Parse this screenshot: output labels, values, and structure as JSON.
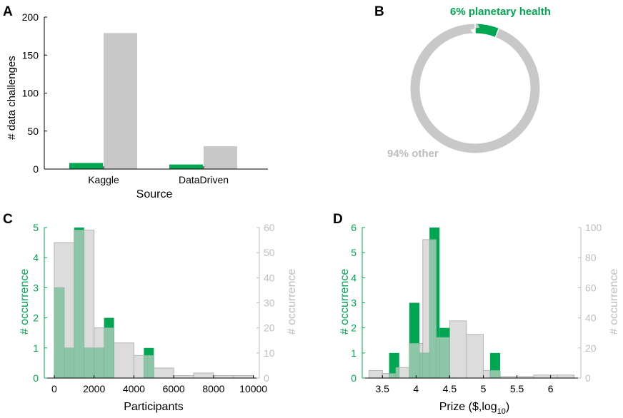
{
  "colors": {
    "green": "#00a651",
    "gray_fill": "#c8c8c8",
    "gray_hist": "#dcdcdc",
    "gray_edge": "#b4b4b4",
    "overlap": "#8dc5a7",
    "overlap_edge": "#7fb89a",
    "axis": "#000000",
    "gray_text": "#bdbdbd"
  },
  "chart_data": [
    {
      "panel": "A",
      "type": "bar",
      "xlabel": "Source",
      "ylabel": "# data challenges",
      "ylim": [
        0,
        200
      ],
      "yticks": [
        0,
        50,
        100,
        150,
        200
      ],
      "categories": [
        "Kaggle",
        "DataDriven"
      ],
      "series": [
        {
          "name": "planetary health",
          "color": "green",
          "values": [
            8,
            6
          ]
        },
        {
          "name": "other",
          "color": "gray",
          "values": [
            179,
            30
          ]
        }
      ]
    },
    {
      "panel": "B",
      "type": "pie",
      "style": "donut",
      "slices": [
        {
          "label": "6% planetary health",
          "value": 6,
          "color": "green"
        },
        {
          "label": "94% other",
          "value": 94,
          "color": "gray"
        }
      ]
    },
    {
      "panel": "C",
      "type": "bar",
      "style": "dual-axis histogram",
      "xlabel": "Participants",
      "ylabel_left": "# occurrence",
      "ylabel_right": "# occurrence",
      "xlim": [
        -500,
        10300
      ],
      "xticks": [
        0,
        2000,
        4000,
        6000,
        8000,
        10000
      ],
      "ylim_left": [
        0,
        5
      ],
      "yticks_left": [
        0,
        1,
        2,
        3,
        4,
        5
      ],
      "ylim_right": [
        0,
        60
      ],
      "yticks_right": [
        0,
        10,
        20,
        30,
        40,
        50,
        60
      ],
      "green_bins": [
        {
          "x0": 0,
          "x1": 500,
          "count": 3
        },
        {
          "x0": 500,
          "x1": 1000,
          "count": 1
        },
        {
          "x0": 1000,
          "x1": 1500,
          "count": 5
        },
        {
          "x0": 1500,
          "x1": 2000,
          "count": 1
        },
        {
          "x0": 2000,
          "x1": 2500,
          "count": 1
        },
        {
          "x0": 2500,
          "x1": 3000,
          "count": 2
        },
        {
          "x0": 3000,
          "x1": 3500,
          "count": 0
        },
        {
          "x0": 3500,
          "x1": 4000,
          "count": 0
        },
        {
          "x0": 4000,
          "x1": 4500,
          "count": 0
        },
        {
          "x0": 4500,
          "x1": 5000,
          "count": 1
        }
      ],
      "gray_bins": [
        {
          "x0": 0,
          "x1": 1000,
          "count": 54
        },
        {
          "x0": 1000,
          "x1": 2000,
          "count": 59
        },
        {
          "x0": 2000,
          "x1": 3000,
          "count": 20
        },
        {
          "x0": 3000,
          "x1": 4000,
          "count": 14
        },
        {
          "x0": 4000,
          "x1": 5000,
          "count": 9
        },
        {
          "x0": 5000,
          "x1": 6000,
          "count": 4
        },
        {
          "x0": 6000,
          "x1": 7000,
          "count": 1
        },
        {
          "x0": 7000,
          "x1": 8000,
          "count": 2
        },
        {
          "x0": 8000,
          "x1": 9000,
          "count": 1
        },
        {
          "x0": 9000,
          "x1": 10000,
          "count": 1
        }
      ]
    },
    {
      "panel": "D",
      "type": "bar",
      "style": "dual-axis histogram",
      "xlabel": "Prize ($,log",
      "xlabel_sub": "10",
      "xlabel_end": ")",
      "ylabel_left": "# occurrence",
      "ylabel_right": "# occurrence",
      "xlim": [
        3.2,
        6.45
      ],
      "xticks": [
        3.5,
        4,
        4.5,
        5,
        5.5,
        6
      ],
      "xtick_labels": [
        "3.5",
        "4",
        "4.5",
        "5",
        "5.5",
        "6"
      ],
      "ylim_left": [
        0,
        6
      ],
      "yticks_left": [
        0,
        1,
        2,
        3,
        4,
        5,
        6
      ],
      "ylim_right": [
        0,
        100
      ],
      "yticks_right": [
        0,
        20,
        40,
        60,
        80,
        100
      ],
      "green_bins": [
        {
          "x0": 3.6,
          "x1": 3.75,
          "count": 1
        },
        {
          "x0": 3.75,
          "x1": 3.9,
          "count": 0
        },
        {
          "x0": 3.9,
          "x1": 4.05,
          "count": 3
        },
        {
          "x0": 4.05,
          "x1": 4.2,
          "count": 1
        },
        {
          "x0": 4.2,
          "x1": 4.35,
          "count": 6
        },
        {
          "x0": 4.35,
          "x1": 4.5,
          "count": 2
        },
        {
          "x0": 4.5,
          "x1": 4.65,
          "count": 0
        },
        {
          "x0": 4.65,
          "x1": 4.8,
          "count": 0
        },
        {
          "x0": 4.8,
          "x1": 4.95,
          "count": 0
        },
        {
          "x0": 4.95,
          "x1": 5.1,
          "count": 0
        },
        {
          "x0": 5.1,
          "x1": 5.25,
          "count": 1
        }
      ],
      "gray_bins": [
        {
          "x0": 3.3,
          "x1": 3.5,
          "count": 5
        },
        {
          "x0": 3.5,
          "x1": 3.7,
          "count": 3
        },
        {
          "x0": 3.7,
          "x1": 3.9,
          "count": 7
        },
        {
          "x0": 3.9,
          "x1": 4.1,
          "count": 23
        },
        {
          "x0": 4.1,
          "x1": 4.3,
          "count": 92
        },
        {
          "x0": 4.3,
          "x1": 4.5,
          "count": 27
        },
        {
          "x0": 4.5,
          "x1": 4.75,
          "count": 38
        },
        {
          "x0": 4.75,
          "x1": 5.0,
          "count": 29
        },
        {
          "x0": 5.0,
          "x1": 5.25,
          "count": 5
        },
        {
          "x0": 5.25,
          "x1": 5.5,
          "count": 1
        },
        {
          "x0": 5.5,
          "x1": 5.75,
          "count": 1
        },
        {
          "x0": 5.75,
          "x1": 6.1,
          "count": 2
        },
        {
          "x0": 6.1,
          "x1": 6.35,
          "count": 2
        }
      ]
    }
  ]
}
